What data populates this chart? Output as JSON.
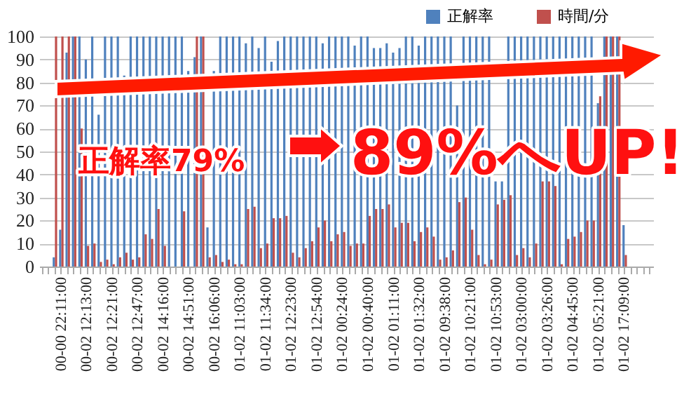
{
  "chart_data": {
    "type": "bar",
    "categories": [
      null,
      null,
      null,
      "00-00 22:11:00",
      null,
      null,
      null,
      "00-02 12:13:00",
      null,
      null,
      null,
      "00-02 12:21:00",
      null,
      null,
      null,
      "00-02 12:47:00",
      null,
      null,
      null,
      "00-02 14:16:00",
      null,
      null,
      null,
      "00-02 14:51:00",
      null,
      null,
      null,
      "00-02 16:06:00",
      null,
      null,
      null,
      "01-02 11:03:00",
      null,
      null,
      null,
      "01-02 11:34:00",
      null,
      null,
      null,
      "01-02 12:23:00",
      null,
      null,
      null,
      "01-02 12:54:00",
      null,
      null,
      null,
      "01-02 00:24:00",
      null,
      null,
      null,
      "01-02 00:40:00",
      null,
      null,
      null,
      "01-02 01:11:00",
      null,
      null,
      null,
      "01-02 01:32:00",
      null,
      null,
      null,
      "01-02 09:38:00",
      null,
      null,
      null,
      "01-02 10:21:00",
      null,
      null,
      null,
      "01-02 10:53:00",
      null,
      null,
      null,
      "01-02 03:00:00",
      null,
      null,
      null,
      "01-02 03:26:00",
      null,
      null,
      null,
      "01-02 04:45:00",
      null,
      null,
      null,
      "01-02 05:21:00",
      null,
      null,
      null,
      "01-02 17:09:00",
      null,
      null,
      null,
      null
    ],
    "series": [
      {
        "name": "正解率",
        "color": "#4f81bd",
        "values": [
          0,
          0,
          4,
          16,
          93,
          100,
          100,
          90,
          100,
          66,
          100,
          100,
          100,
          83,
          100,
          100,
          100,
          100,
          100,
          100,
          100,
          100,
          100,
          85,
          91,
          100,
          17,
          85,
          100,
          100,
          100,
          100,
          97,
          100,
          95,
          100,
          89,
          98,
          100,
          100,
          100,
          100,
          100,
          100,
          97,
          100,
          100,
          100,
          100,
          96,
          100,
          100,
          95,
          95,
          97,
          93,
          95,
          100,
          100,
          96,
          100,
          100,
          100,
          100,
          100,
          70,
          100,
          100,
          100,
          100,
          100,
          37,
          37,
          100,
          100,
          100,
          100,
          100,
          100,
          100,
          100,
          100,
          100,
          100,
          100,
          100,
          100,
          71,
          100,
          100,
          100,
          18,
          0,
          0,
          0,
          0
        ]
      },
      {
        "name": "時間/分",
        "color": "#c0504d",
        "values": [
          0,
          0,
          100,
          100,
          100,
          100,
          60,
          9,
          10,
          2,
          3,
          1,
          4,
          6,
          3,
          4,
          14,
          12,
          25,
          9,
          null,
          null,
          24,
          null,
          100,
          100,
          4,
          5,
          2,
          3,
          1,
          1,
          25,
          26,
          8,
          10,
          21,
          21,
          22,
          6,
          4,
          8,
          11,
          17,
          20,
          11,
          14,
          15,
          9,
          10,
          10,
          22,
          25,
          25,
          27,
          17,
          19,
          19,
          11,
          15,
          17,
          13,
          3,
          4,
          7,
          28,
          30,
          16,
          5,
          1,
          3,
          27,
          29,
          31,
          5,
          8,
          4,
          10,
          37,
          37,
          35,
          1,
          12,
          13,
          15,
          20,
          20,
          74,
          100,
          100,
          100,
          5,
          0,
          0,
          0,
          0
        ]
      }
    ],
    "ylim": [
      0,
      100
    ],
    "yticks": [
      0,
      10,
      20,
      30,
      40,
      50,
      60,
      70,
      80,
      90,
      100
    ],
    "grid": "y",
    "legend": "top right",
    "annotations": [
      "正解率79%",
      "89%へUP!"
    ]
  }
}
